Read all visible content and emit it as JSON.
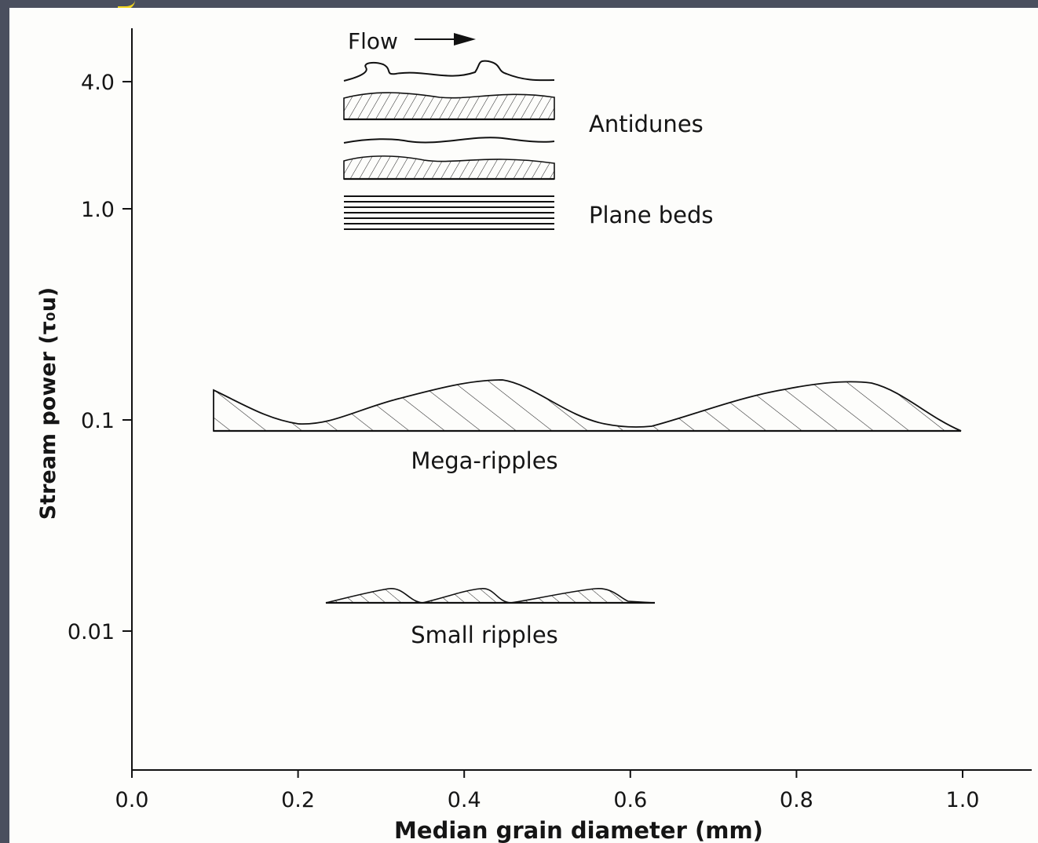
{
  "chart_data": {
    "type": "diagram",
    "xlabel": "Median grain diameter (mm)",
    "ylabel": "Stream power (τ₀u)",
    "x_ticks": [
      "0.0",
      "0.2",
      "0.4",
      "0.6",
      "0.8",
      "1.0"
    ],
    "x_tick_values": [
      0.0,
      0.2,
      0.4,
      0.6,
      0.8,
      1.0
    ],
    "y_ticks": [
      "4.0",
      "1.0",
      "0.1",
      "0.01"
    ],
    "y_tick_values": [
      4.0,
      1.0,
      0.1,
      0.01
    ],
    "y_scale": "log",
    "xlim": [
      0.0,
      1.08
    ],
    "ylim": [
      0.0025,
      7
    ],
    "bedforms": [
      {
        "label": "Antidunes",
        "x_range": [
          0.25,
          0.5
        ],
        "y_range": [
          1.2,
          4.5
        ]
      },
      {
        "label": "Plane beds",
        "x_range": [
          0.25,
          0.5
        ],
        "y_range": [
          0.8,
          1.2
        ]
      },
      {
        "label": "Mega-ripples",
        "x_range": [
          0.1,
          1.0
        ],
        "y_range": [
          0.09,
          0.15
        ]
      },
      {
        "label": "Small ripples",
        "x_range": [
          0.23,
          0.63
        ],
        "y_range": [
          0.014,
          0.017
        ]
      }
    ],
    "flow_label": "Flow",
    "grid": false
  },
  "accent_color": "#f2d51e",
  "frame_color": "#4a4f5e"
}
